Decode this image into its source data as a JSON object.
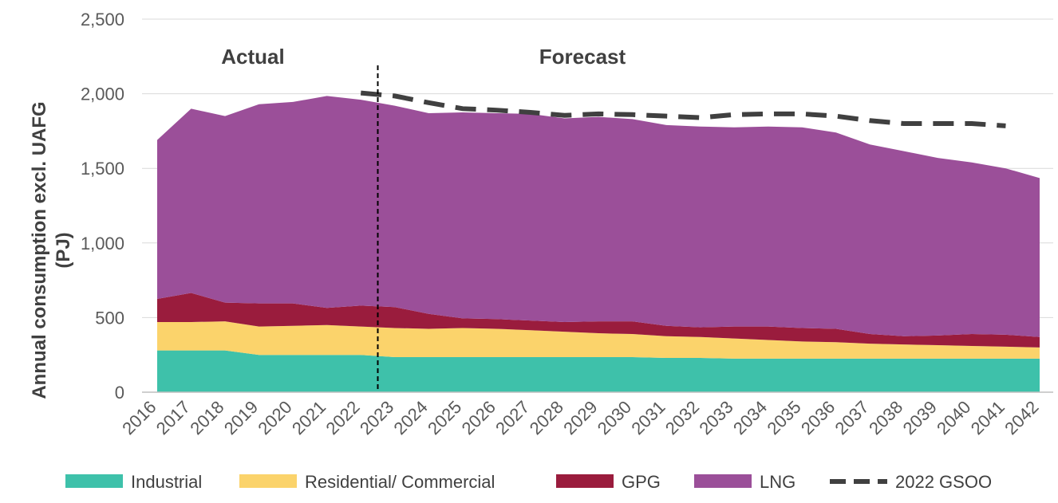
{
  "chart_data": {
    "type": "area",
    "stacked": true,
    "ylabel_lines": [
      "Annual consumption excl. UAFG",
      "(PJ)"
    ],
    "ylim": [
      0,
      2500
    ],
    "y_ticks": [
      0,
      500,
      1000,
      1500,
      2000,
      2500
    ],
    "y_tick_labels": [
      "0",
      "500",
      "1,000",
      "1,500",
      "2,000",
      "2,500"
    ],
    "categories": [
      "2016",
      "2017",
      "2018",
      "2019",
      "2020",
      "2021",
      "2022",
      "2023",
      "2024",
      "2025",
      "2026",
      "2027",
      "2028",
      "2029",
      "2030",
      "2031",
      "2032",
      "2033",
      "2034",
      "2035",
      "2036",
      "2037",
      "2038",
      "2039",
      "2040",
      "2041",
      "2042"
    ],
    "annotations": {
      "actual": "Actual",
      "forecast": "Forecast",
      "divider_between": [
        "2022",
        "2023"
      ]
    },
    "series": [
      {
        "name": "Industrial",
        "color": "#3ec1aa",
        "values": [
          280,
          280,
          280,
          250,
          250,
          250,
          250,
          235,
          235,
          235,
          235,
          235,
          235,
          235,
          235,
          230,
          230,
          225,
          225,
          225,
          225,
          225,
          225,
          225,
          225,
          225,
          225
        ]
      },
      {
        "name": "Residential/ Commercial",
        "color": "#fbd36b",
        "values": [
          190,
          190,
          195,
          190,
          195,
          200,
          190,
          195,
          190,
          195,
          190,
          180,
          170,
          160,
          155,
          145,
          140,
          135,
          125,
          115,
          110,
          100,
          95,
          90,
          85,
          80,
          75
        ]
      },
      {
        "name": "GPG",
        "color": "#9a1c3d",
        "values": [
          155,
          195,
          125,
          155,
          150,
          115,
          140,
          140,
          100,
          65,
          65,
          65,
          65,
          80,
          85,
          70,
          65,
          80,
          90,
          90,
          90,
          65,
          55,
          65,
          80,
          80,
          70
        ]
      },
      {
        "name": "LNG",
        "color": "#9b4f99",
        "values": [
          1065,
          1235,
          1250,
          1335,
          1350,
          1420,
          1380,
          1350,
          1345,
          1380,
          1380,
          1385,
          1365,
          1370,
          1355,
          1345,
          1345,
          1335,
          1340,
          1345,
          1315,
          1270,
          1240,
          1190,
          1150,
          1115,
          1065
        ]
      }
    ],
    "reference_line": {
      "name": "2022 GSOO",
      "color": "#404040",
      "x": [
        "2022",
        "2023",
        "2024",
        "2025",
        "2026",
        "2027",
        "2028",
        "2029",
        "2030",
        "2031",
        "2032",
        "2033",
        "2034",
        "2035",
        "2036",
        "2037",
        "2038",
        "2039",
        "2040",
        "2041"
      ],
      "values": [
        2005,
        1985,
        1940,
        1900,
        1890,
        1875,
        1855,
        1865,
        1860,
        1850,
        1840,
        1860,
        1865,
        1865,
        1850,
        1820,
        1800,
        1800,
        1800,
        1785
      ]
    },
    "legend": {
      "placement": "bottom",
      "items": [
        {
          "label": "Industrial",
          "color": "#3ec1aa",
          "kind": "area"
        },
        {
          "label": "Residential/ Commercial",
          "color": "#fbd36b",
          "kind": "area"
        },
        {
          "label": "GPG",
          "color": "#9a1c3d",
          "kind": "area"
        },
        {
          "label": "LNG",
          "color": "#9b4f99",
          "kind": "area"
        },
        {
          "label": "2022 GSOO",
          "color": "#404040",
          "kind": "dashed-line"
        }
      ]
    },
    "grid": {
      "horizontal": true,
      "color": "#d9d9d9"
    }
  }
}
